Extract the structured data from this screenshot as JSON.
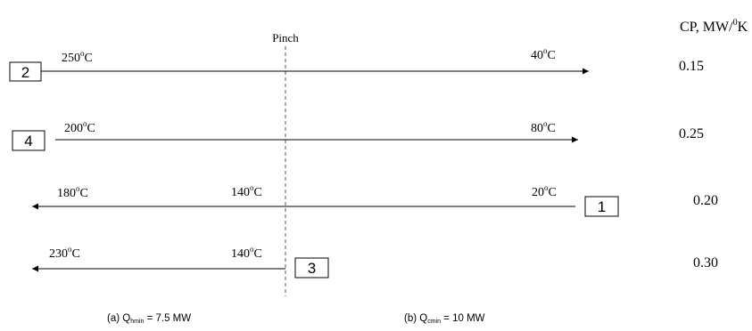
{
  "pinch_label": "Pinch",
  "cp_header": {
    "prefix": "CP, MW/",
    "sup": "0",
    "suffix": "K"
  },
  "streams": [
    {
      "id": "2",
      "kind": "hot",
      "start_temp": {
        "value": "250",
        "sup": "o",
        "unit": "C"
      },
      "end_temp": {
        "value": "40",
        "sup": "o",
        "unit": "C"
      },
      "cp": "0.15"
    },
    {
      "id": "4",
      "kind": "hot",
      "start_temp": {
        "value": "200",
        "sup": "o",
        "unit": "C"
      },
      "end_temp": {
        "value": "80",
        "sup": "o",
        "unit": "C"
      },
      "cp": "0.25"
    },
    {
      "id": "1",
      "kind": "cold",
      "start_temp": {
        "value": "20",
        "sup": "o",
        "unit": "C"
      },
      "pinch_temp": {
        "value": "140",
        "sup": "o",
        "unit": "C"
      },
      "end_temp": {
        "value": "180",
        "sup": "o",
        "unit": "C"
      },
      "cp": "0.20"
    },
    {
      "id": "3",
      "kind": "cold",
      "pinch_temp": {
        "value": "140",
        "sup": "o",
        "unit": "C"
      },
      "end_temp": {
        "value": "230",
        "sup": "o",
        "unit": "C"
      },
      "cp": "0.30"
    }
  ],
  "captions": {
    "a": {
      "prefix": "(a) Q",
      "sub": "hmin",
      "suffix": " = 7.5 MW"
    },
    "b": {
      "prefix": "(b) Q",
      "sub": "cmin",
      "suffix": " = 10 MW"
    }
  }
}
